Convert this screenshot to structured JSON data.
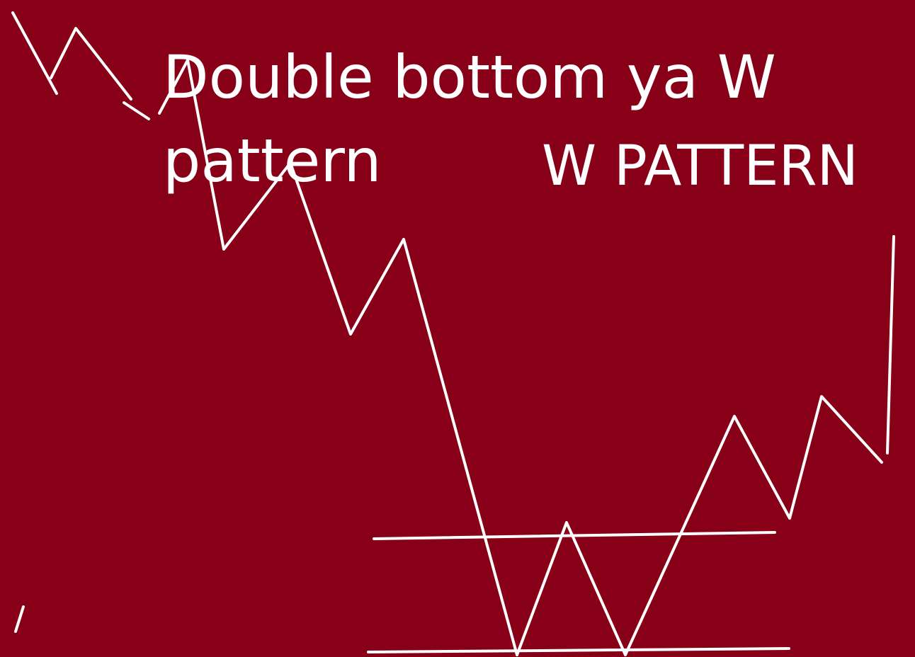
{
  "title": "Double bottom ya W\npattern",
  "label": "W PATTERN",
  "colors": {
    "background": "#870018",
    "foreground": "#ffffff"
  }
}
